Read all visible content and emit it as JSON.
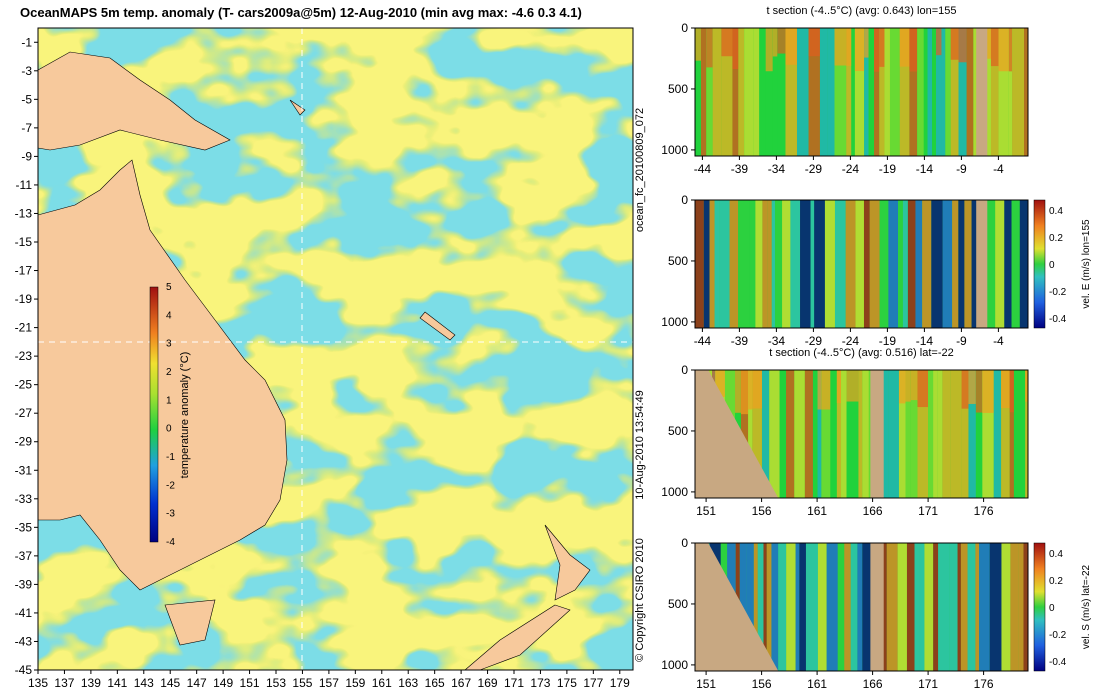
{
  "main_map": {
    "title": "OceanMAPS 5m temp. anomaly (T- cars2009a@5m) 12-Aug-2010 (min avg max: -4.6 0.3 4.1)",
    "lon_ticks": [
      "135",
      "137",
      "139",
      "141",
      "143",
      "145",
      "147",
      "149",
      "151",
      "153",
      "155",
      "157",
      "159",
      "161",
      "163",
      "165",
      "167",
      "169",
      "171",
      "173",
      "175",
      "177",
      "179"
    ],
    "lat_ticks": [
      "-1",
      "-3",
      "-5",
      "-7",
      "-9",
      "-11",
      "-13",
      "-15",
      "-17",
      "-19",
      "-21",
      "-23",
      "-25",
      "-27",
      "-29",
      "-31",
      "-33",
      "-35",
      "-37",
      "-39",
      "-41",
      "-43",
      "-45"
    ],
    "xlim": [
      135,
      180
    ],
    "ylim": [
      -45,
      0
    ],
    "crosshair": {
      "lon": 155,
      "lat": -22
    },
    "colorbar": {
      "label": "temperature anomaly (°C)",
      "ticks": [
        "5",
        "4",
        "3",
        "2",
        "1",
        "0",
        "-1",
        "-2",
        "-3",
        "-4"
      ],
      "range": [
        -4,
        5
      ]
    },
    "colors": {
      "land": "#f7c99c",
      "ocean_base": "#22d23c",
      "warm": "#f0e43a",
      "cool": "#34b6c8"
    }
  },
  "vertical_labels": {
    "run": "ocean_fc_20100809_072",
    "timestamp": "10-Aug-2010 13:54:49",
    "copyright": "© Copyright CSIRO 2010"
  },
  "panels": [
    {
      "id": "t-section-lon",
      "title": "t section (-4..5°C) (avg: 0.643) lon=155",
      "x_ticks": [
        "-44",
        "-39",
        "-34",
        "-29",
        "-24",
        "-19",
        "-14",
        "-9",
        "-4"
      ],
      "y_ticks": [
        "0",
        "500",
        "1000"
      ],
      "xlim": [
        -45,
        0
      ],
      "ylim": [
        0,
        1050
      ],
      "colorbar": null
    },
    {
      "id": "vel-e-lon",
      "title": "",
      "x_ticks": [
        "-44",
        "-39",
        "-34",
        "-29",
        "-24",
        "-19",
        "-14",
        "-9",
        "-4"
      ],
      "y_ticks": [
        "0",
        "500",
        "1000"
      ],
      "xlim": [
        -45,
        0
      ],
      "ylim": [
        0,
        1050
      ],
      "colorbar": {
        "label": "vel. E (m/s) lon=155",
        "ticks": [
          "0.4",
          "0.2",
          "0",
          "-0.2",
          "-0.4"
        ]
      }
    },
    {
      "id": "t-section-lat",
      "title": "t section (-4..5°C) (avg: 0.516) lat=-22",
      "x_ticks": [
        "151",
        "156",
        "161",
        "166",
        "171",
        "176"
      ],
      "y_ticks": [
        "0",
        "500",
        "1000"
      ],
      "xlim": [
        150,
        180
      ],
      "ylim": [
        0,
        1050
      ],
      "colorbar": null
    },
    {
      "id": "vel-s-lat",
      "title": "",
      "x_ticks": [
        "151",
        "156",
        "161",
        "166",
        "171",
        "176"
      ],
      "y_ticks": [
        "0",
        "500",
        "1000"
      ],
      "xlim": [
        150,
        180
      ],
      "ylim": [
        0,
        1050
      ],
      "colorbar": {
        "label": "vel. S (m/s) lat=-22",
        "ticks": [
          "0.4",
          "0.2",
          "0",
          "-0.2",
          "-0.4"
        ]
      }
    }
  ]
}
